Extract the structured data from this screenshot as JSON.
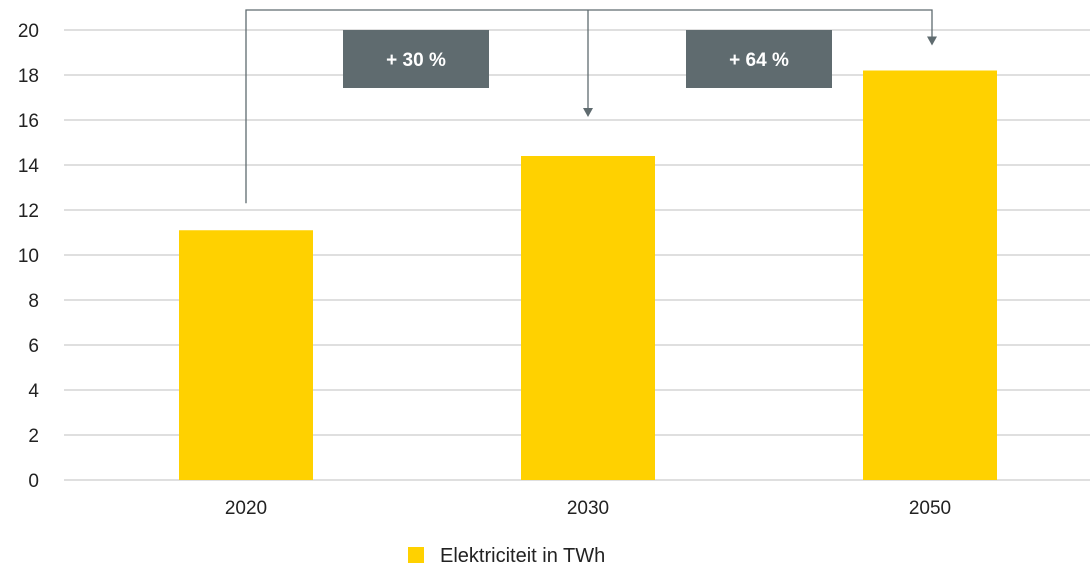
{
  "chart_data": {
    "type": "bar",
    "categories": [
      "2020",
      "2030",
      "2050"
    ],
    "series": [
      {
        "name": "Elektriciteit in TWh",
        "values": [
          11.1,
          14.4,
          18.2
        ]
      }
    ],
    "ylim": [
      0,
      20
    ],
    "yticks": [
      0,
      2,
      4,
      6,
      8,
      10,
      12,
      14,
      16,
      18,
      20
    ],
    "grid": true,
    "legend": "bottom-center",
    "annotations": [
      {
        "label": "+ 30 %",
        "from": "2020",
        "to": "2030"
      },
      {
        "label": "+ 64 %",
        "from": "2020",
        "to": "2050"
      }
    ],
    "colors": {
      "bar": "#FFD100",
      "grid": "#BFBFBF",
      "callout_bg": "#5F6B6F",
      "arrow": "#5F6B6F"
    }
  }
}
